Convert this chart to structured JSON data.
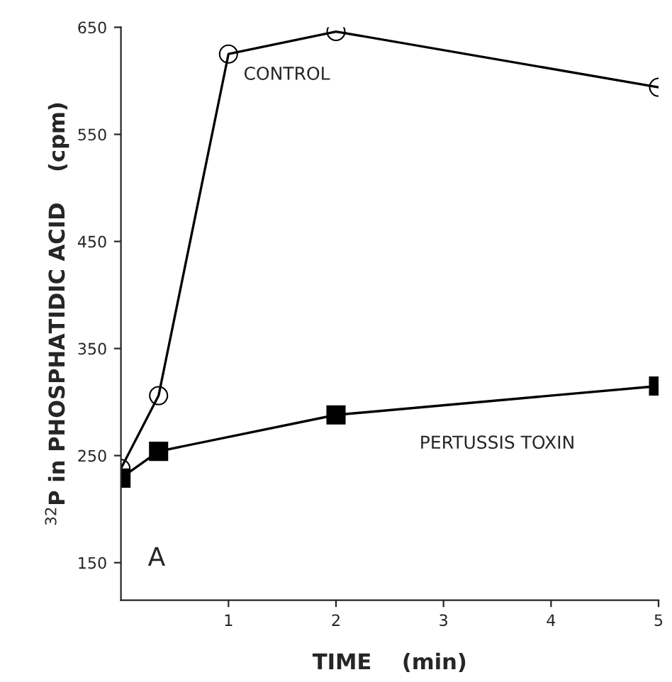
{
  "chart_data": {
    "type": "line",
    "xlabel": "TIME    (min)",
    "ylabel": "$^{32}$P in PHOSPHATIDIC ACID    (cpm)",
    "series": [
      {
        "name": "CONTROL",
        "color": "#000000",
        "marker": "circle",
        "x": [
          0,
          0.35,
          1,
          2,
          5
        ],
        "values": [
          238,
          306,
          625,
          646,
          594
        ]
      },
      {
        "name": "PERTUSSIS TOXIN",
        "color": "#000000",
        "marker": "square",
        "x": [
          0,
          0.35,
          2,
          5
        ],
        "values": [
          229,
          254,
          288,
          315
        ]
      }
    ],
    "xlim": [
      0,
      5
    ],
    "xticks": [
      1,
      2,
      3,
      4,
      5
    ],
    "ylim": [
      115,
      650
    ],
    "yticks": [
      150,
      250,
      350,
      450,
      550,
      650
    ],
    "annotations": [
      "A"
    ],
    "grid": false,
    "legend": false,
    "line_style": "solid"
  }
}
